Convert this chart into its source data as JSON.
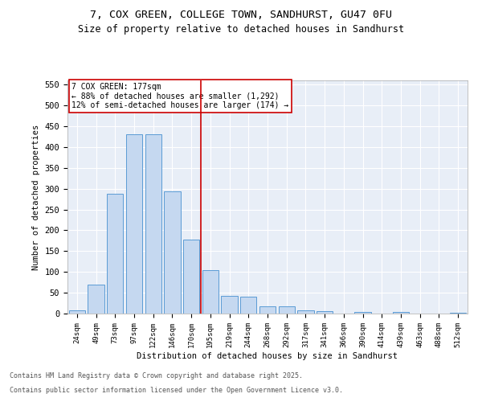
{
  "title_line1": "7, COX GREEN, COLLEGE TOWN, SANDHURST, GU47 0FU",
  "title_line2": "Size of property relative to detached houses in Sandhurst",
  "xlabel": "Distribution of detached houses by size in Sandhurst",
  "ylabel": "Number of detached properties",
  "bar_labels": [
    "24sqm",
    "49sqm",
    "73sqm",
    "97sqm",
    "122sqm",
    "146sqm",
    "170sqm",
    "195sqm",
    "219sqm",
    "244sqm",
    "268sqm",
    "292sqm",
    "317sqm",
    "341sqm",
    "366sqm",
    "390sqm",
    "414sqm",
    "439sqm",
    "463sqm",
    "488sqm",
    "512sqm"
  ],
  "bar_values": [
    8,
    70,
    288,
    430,
    430,
    293,
    178,
    105,
    43,
    40,
    18,
    18,
    7,
    5,
    0,
    4,
    0,
    4,
    0,
    0,
    2
  ],
  "bar_color": "#c5d8f0",
  "bar_edge_color": "#5b9bd5",
  "background_color": "#e8eef7",
  "grid_color": "#ffffff",
  "vline_color": "#cc0000",
  "annotation_title": "7 COX GREEN: 177sqm",
  "annotation_line1": "← 88% of detached houses are smaller (1,292)",
  "annotation_line2": "12% of semi-detached houses are larger (174) →",
  "ylim": [
    0,
    560
  ],
  "yticks": [
    0,
    50,
    100,
    150,
    200,
    250,
    300,
    350,
    400,
    450,
    500,
    550
  ],
  "footer_line1": "Contains HM Land Registry data © Crown copyright and database right 2025.",
  "footer_line2": "Contains public sector information licensed under the Open Government Licence v3.0.",
  "fig_bg_color": "#ffffff"
}
